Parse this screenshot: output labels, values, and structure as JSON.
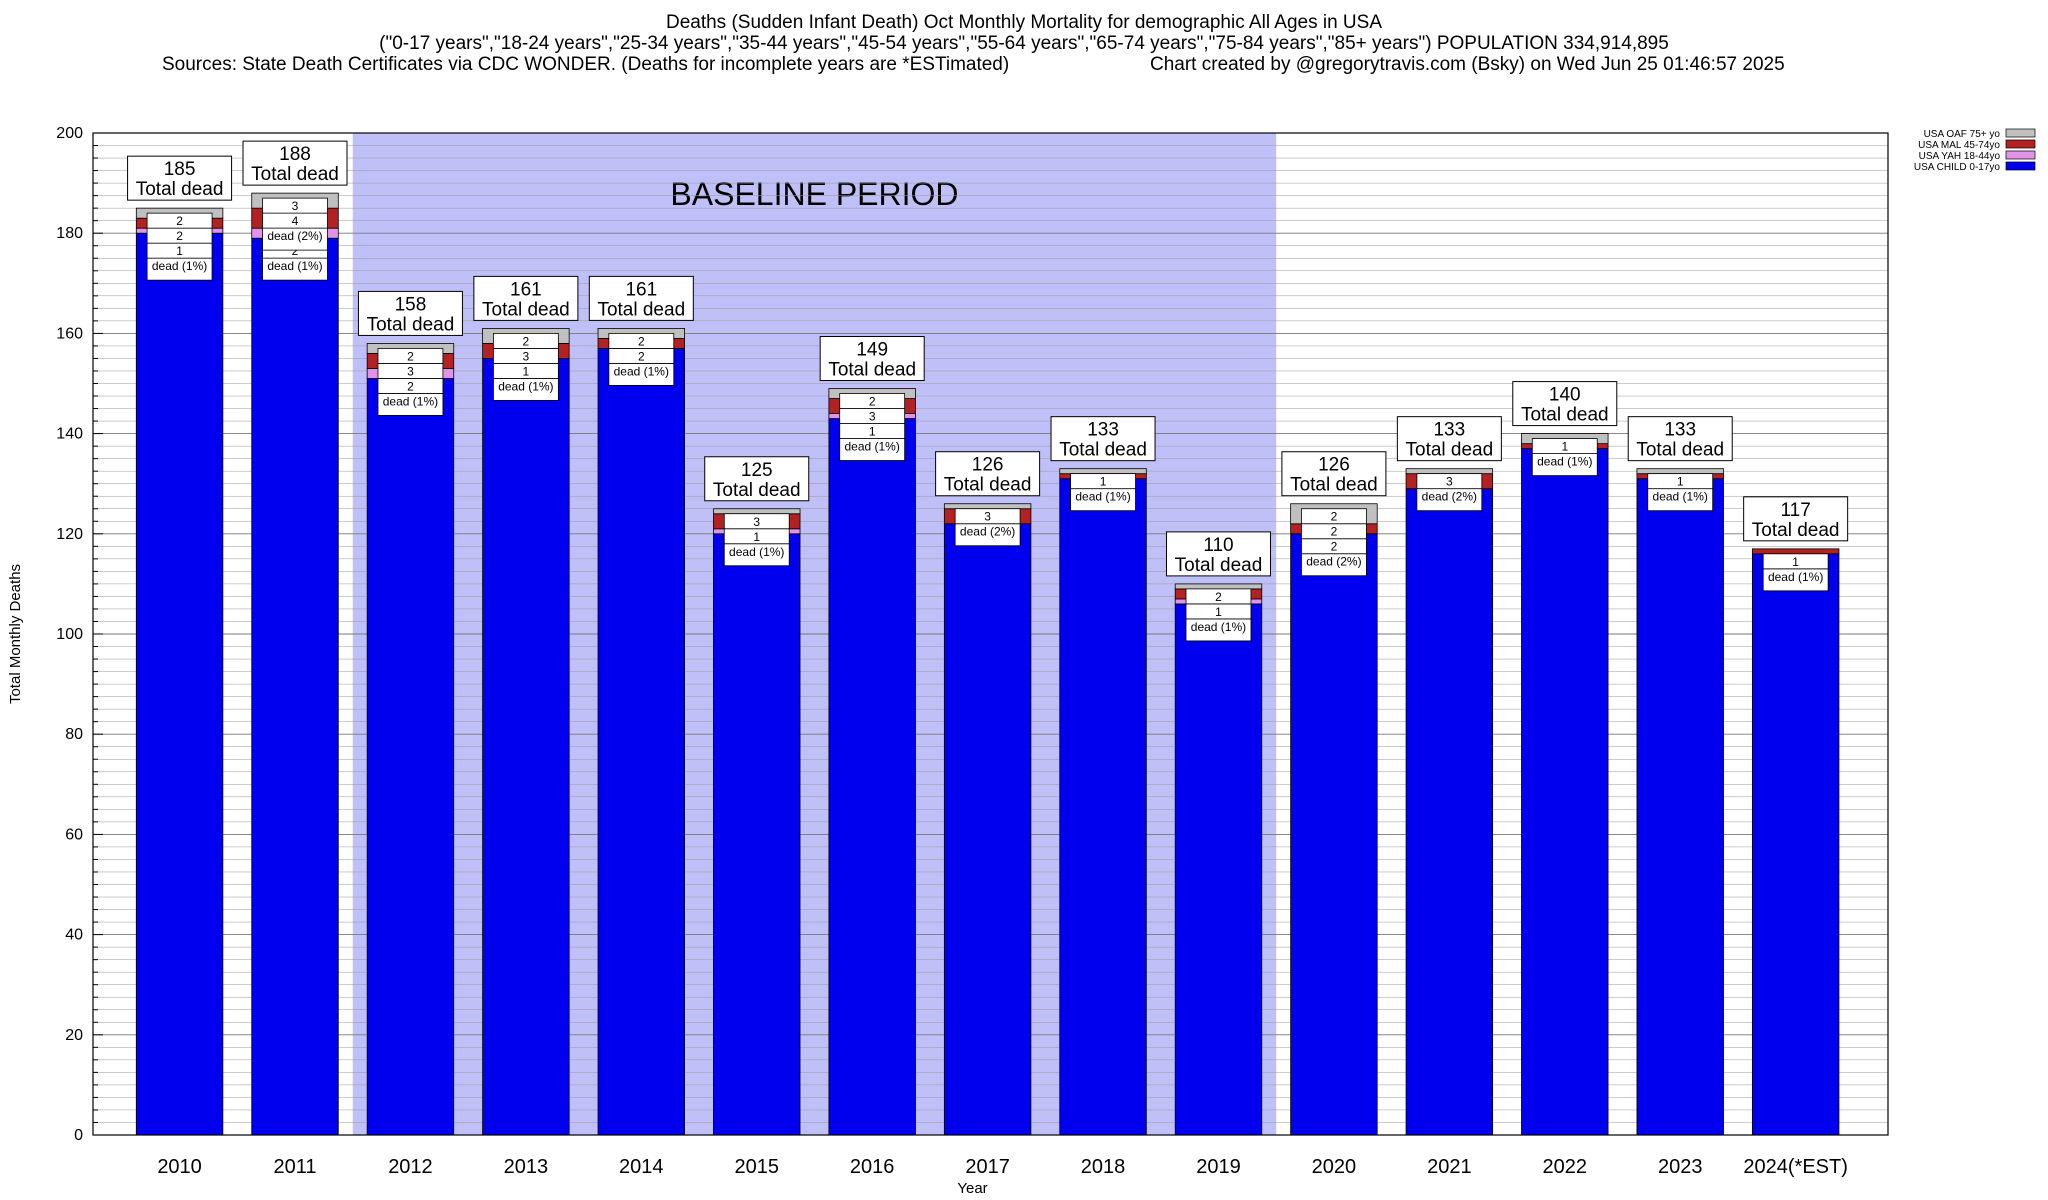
{
  "header": {
    "title": "Deaths (Sudden Infant Death) Oct Monthly Mortality for demographic All Ages in USA",
    "subtitle": "(\"0-17 years\",\"18-24 years\",\"25-34 years\",\"35-44 years\",\"45-54 years\",\"55-64 years\",\"65-74 years\",\"75-84 years\",\"85+ years\") POPULATION 334,914,895",
    "sources": "Sources: State Death Certificates via CDC WONDER. (Deaths for incomplete years are *ESTimated)",
    "credit": "Chart created by @gregorytravis.com (Bsky) on Wed Jun 25 01:46:57 2025"
  },
  "chart_data": {
    "type": "bar",
    "stacked": true,
    "xlabel": "Year",
    "ylabel": "Total Monthly Deaths",
    "ylim": [
      0,
      200
    ],
    "yticks": [
      0,
      20,
      40,
      60,
      80,
      100,
      120,
      140,
      160,
      180,
      200
    ],
    "grid": true,
    "legend_position": "top-right",
    "categories": [
      "2010",
      "2011",
      "2012",
      "2013",
      "2014",
      "2015",
      "2016",
      "2017",
      "2018",
      "2019",
      "2020",
      "2021",
      "2022",
      "2023",
      "2024(*EST)"
    ],
    "totals": [
      185,
      188,
      158,
      161,
      161,
      125,
      149,
      126,
      133,
      110,
      126,
      133,
      140,
      133,
      117
    ],
    "total_label": "Total dead",
    "series": [
      {
        "name": "USA CHILD 0-17yo",
        "color": "#0000ee",
        "values": [
          180,
          179,
          151,
          155,
          157,
          120,
          143,
          122,
          131,
          106,
          120,
          129,
          137,
          131,
          116
        ]
      },
      {
        "name": "USA YAH 18-44yo",
        "color": "#e293e8",
        "values": [
          1,
          2,
          2,
          0,
          0,
          1,
          1,
          0,
          0,
          1,
          0,
          0,
          0,
          0,
          0
        ]
      },
      {
        "name": "USA MAL 45-74yo",
        "color": "#b22222",
        "values": [
          2,
          4,
          3,
          3,
          2,
          3,
          3,
          3,
          1,
          2,
          2,
          3,
          1,
          1,
          1
        ]
      },
      {
        "name": "USA OAF 75+ yo",
        "color": "#c0c0c0",
        "values": [
          2,
          3,
          2,
          3,
          2,
          1,
          2,
          1,
          1,
          1,
          4,
          1,
          2,
          1,
          0
        ]
      }
    ],
    "segment_labels": [
      [
        "dead (1%)",
        "1",
        "2",
        "2"
      ],
      [
        "dead (1%)",
        "2",
        "dead (2%)",
        "4",
        "3"
      ],
      [
        "dead (1%)",
        "2",
        "3",
        "2"
      ],
      [
        "dead (1%)",
        "1",
        "3",
        "2"
      ],
      [
        "dead (1%)",
        "2",
        "2"
      ],
      [
        "dead (1%)",
        "1",
        "3"
      ],
      [
        "dead (1%)",
        "1",
        "3",
        "2"
      ],
      [
        "dead (2%)",
        "3"
      ],
      [
        "dead (1%)",
        "1"
      ],
      [
        "dead (1%)",
        "1",
        "2"
      ],
      [
        "dead (2%)",
        "2",
        "2",
        "2"
      ],
      [
        "dead (2%)",
        "3"
      ],
      [
        "dead (1%)",
        "1"
      ],
      [
        "dead (1%)",
        "1"
      ],
      [
        "dead (1%)",
        "1"
      ]
    ],
    "baseline": {
      "label": "BASELINE PERIOD",
      "from": "2012",
      "to": "2019",
      "color": "#c0c0f8"
    }
  }
}
